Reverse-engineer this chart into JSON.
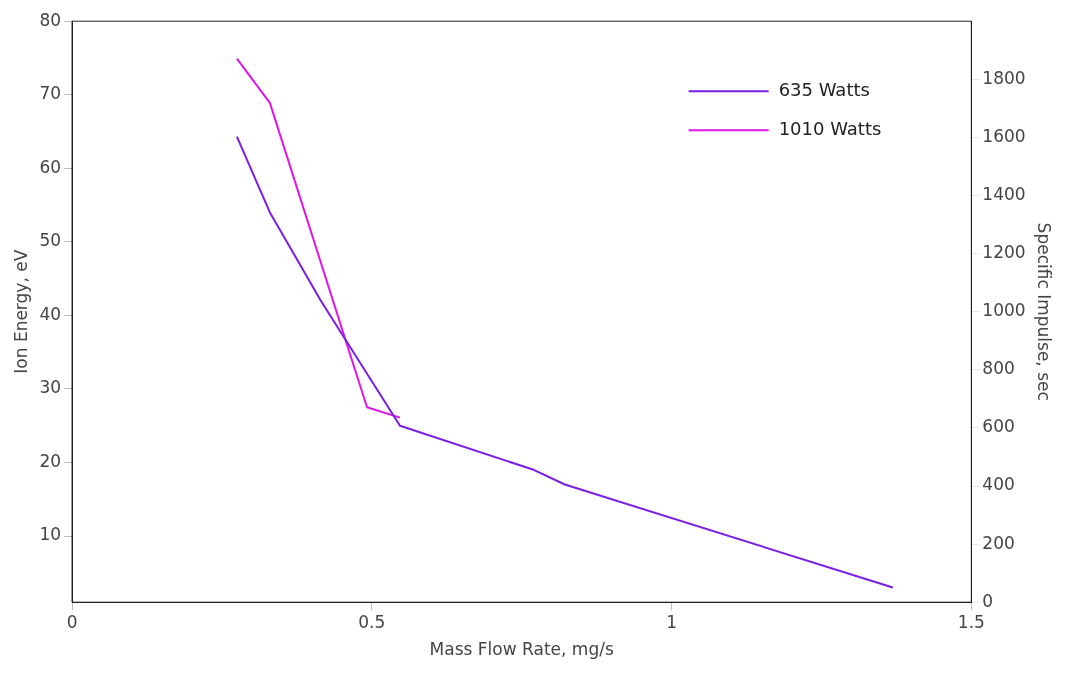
{
  "chart_data": {
    "type": "line",
    "xlabel": "Mass Flow Rate, mg/s",
    "ylabel": "Ion Energy, eV",
    "y2label": "Specific Impulse, sec",
    "series": [
      {
        "name": "635 Watts",
        "color": "#7a1ee6",
        "x": [
          0.275,
          0.33,
          0.415,
          0.547,
          0.77,
          0.822,
          1.369
        ],
        "values": [
          64.3,
          54,
          42,
          25,
          19,
          17,
          3
        ]
      },
      {
        "name": "1010 Watts",
        "color": "#e014e6",
        "x": [
          0.275,
          0.33,
          0.492,
          0.547
        ],
        "values": [
          74.9,
          68.9,
          27.5,
          26.1
        ]
      }
    ],
    "xlim": [
      0,
      1.5
    ],
    "xticks": [
      0,
      0.5,
      1,
      1.5
    ],
    "ylim": [
      1,
      80
    ],
    "yticks": [
      10,
      20,
      30,
      40,
      50,
      60,
      70,
      80
    ],
    "y2lim": [
      0,
      2000
    ],
    "y2ticks": [
      0,
      200,
      400,
      600,
      800,
      1000,
      1200,
      1400,
      1600,
      1800
    ],
    "grid": false,
    "legend": "top right",
    "marker": "none",
    "line_style": "solid"
  }
}
